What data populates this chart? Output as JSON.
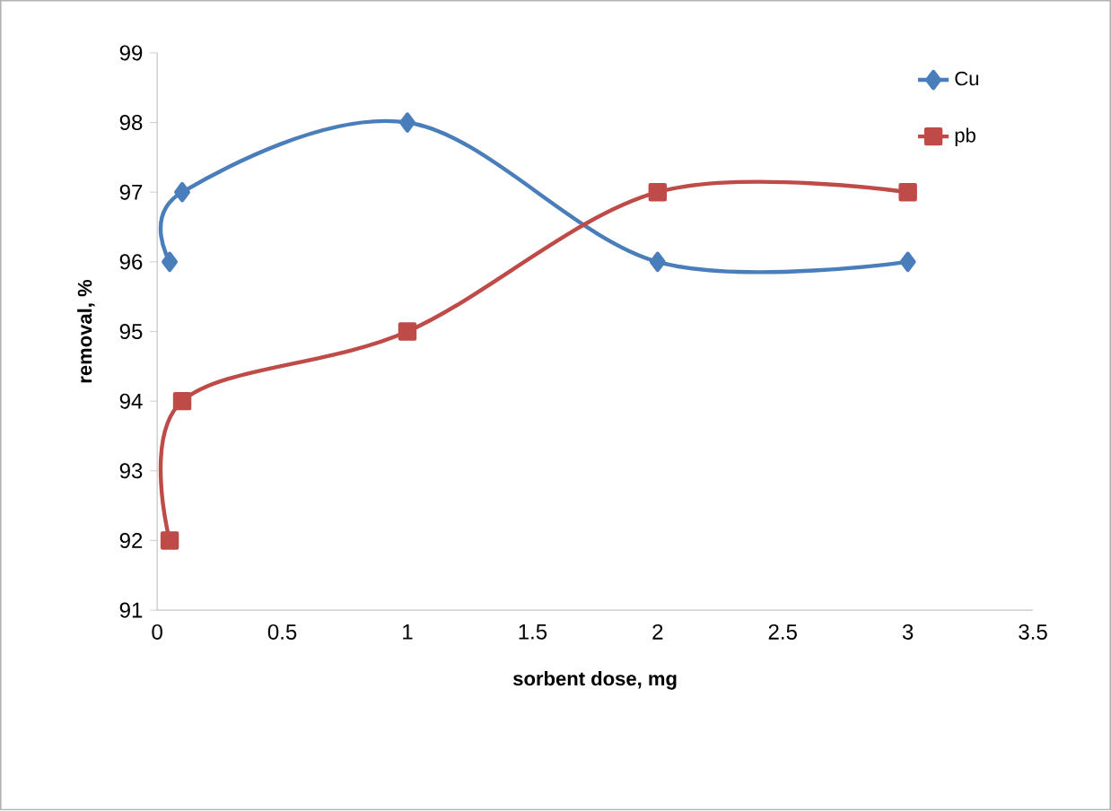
{
  "chart_data": {
    "type": "line",
    "xlabel": "sorbent dose, mg",
    "ylabel": "removal, %",
    "xlim": [
      0,
      3.5
    ],
    "xticks": [
      0,
      0.5,
      1,
      1.5,
      2,
      2.5,
      3,
      3.5
    ],
    "ylim": [
      91,
      99
    ],
    "yticks": [
      91,
      92,
      93,
      94,
      95,
      96,
      97,
      98,
      99
    ],
    "grid": false,
    "legend": "top right",
    "line_style": "solid",
    "series": [
      {
        "name": "Cu",
        "color": "#4a7ebb",
        "marker": "diamond",
        "x": [
          0.05,
          0.1,
          1,
          2,
          3
        ],
        "values": [
          96,
          97,
          98,
          96,
          96
        ]
      },
      {
        "name": "pb",
        "color": "#be4b48",
        "marker": "square",
        "x": [
          0.05,
          0.1,
          1,
          2,
          3
        ],
        "values": [
          92,
          94,
          95,
          97,
          97
        ]
      }
    ]
  }
}
